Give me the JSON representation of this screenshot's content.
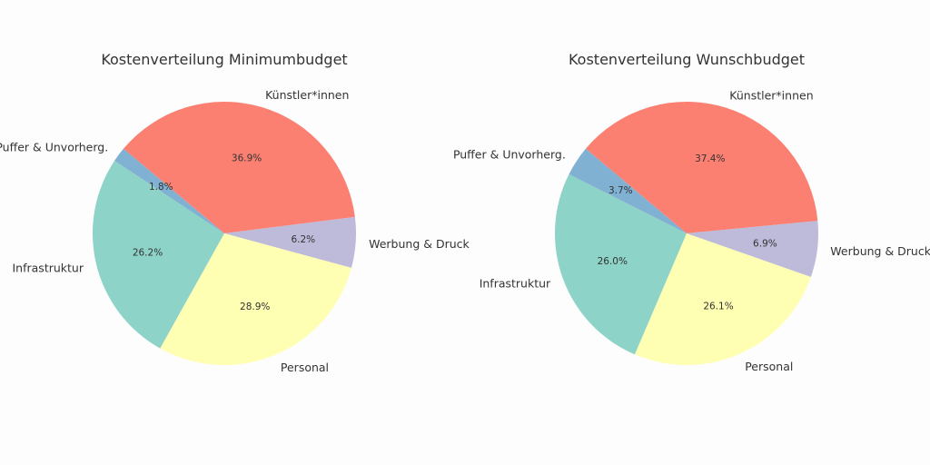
{
  "colors": {
    "background": "#fdfdfd",
    "text": "#333333",
    "Künstler*innen": "#fb8072",
    "Werbung & Druck": "#bebada",
    "Personal": "#ffffb3",
    "Infrastruktur": "#8dd3c7",
    "Puffer & Unvorherg.": "#80b1d3"
  },
  "chart_data": [
    {
      "type": "pie",
      "title": "Kostenverteilung Minimumbudget",
      "labels": [
        "Künstler*innen",
        "Werbung & Druck",
        "Personal",
        "Infrastruktur",
        "Puffer & Unvorherg."
      ],
      "values": [
        36.9,
        6.2,
        28.9,
        26.2,
        1.8
      ],
      "value_labels": [
        "36.9%",
        "6.2%",
        "28.9%",
        "26.2%",
        "1.8%"
      ],
      "start_angle_deg": 140,
      "direction": "clockwise"
    },
    {
      "type": "pie",
      "title": "Kostenverteilung Wunschbudget",
      "labels": [
        "Künstler*innen",
        "Werbung & Druck",
        "Personal",
        "Infrastruktur",
        "Puffer & Unvorherg."
      ],
      "values": [
        37.4,
        6.9,
        26.1,
        26.0,
        3.7
      ],
      "value_labels": [
        "37.4%",
        "6.9%",
        "26.1%",
        "26.0%",
        "3.7%"
      ],
      "start_angle_deg": 140,
      "direction": "clockwise"
    }
  ]
}
